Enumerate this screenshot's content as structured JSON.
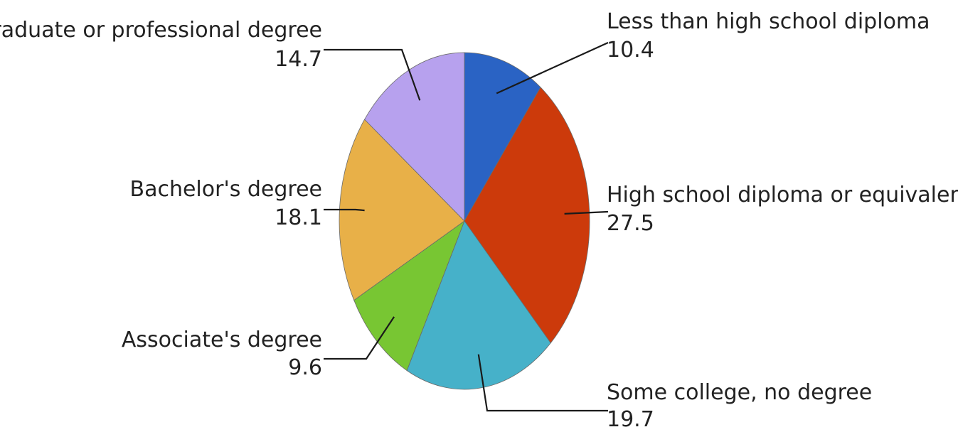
{
  "chart_data": {
    "type": "pie",
    "title": "",
    "categories": [
      "Less than high school diploma",
      "High school diploma or equivalency",
      "Some college, no degree",
      "Associate's degree",
      "Bachelor's degree",
      "Graduate or professional degree"
    ],
    "values": [
      10.4,
      27.5,
      19.7,
      9.6,
      18.1,
      14.7
    ],
    "value_labels": [
      "10.4",
      "27.5",
      "19.7",
      "9.6",
      "18.1",
      "14.7"
    ],
    "colors": [
      "#2a63c4",
      "#cc3a0b",
      "#46b1c9",
      "#78c633",
      "#e8b048",
      "#b7a1ee"
    ],
    "legend": "none"
  }
}
